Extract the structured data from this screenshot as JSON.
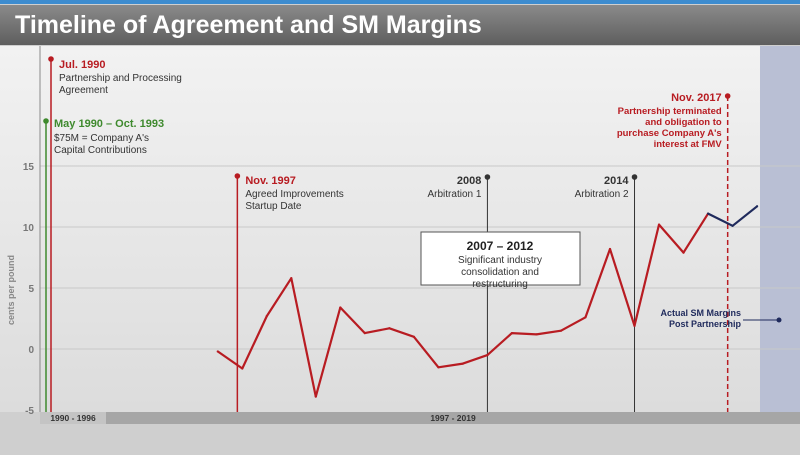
{
  "title": "Timeline of Agreement and SM Margins",
  "chart_data": {
    "type": "line",
    "ylabel": "cents per pound",
    "ylim": [
      -5,
      17
    ],
    "yticks": [
      15,
      10,
      5,
      0,
      -5
    ],
    "x_range": [
      1989.75,
      2020.75
    ],
    "series": [
      {
        "color": "#b81c22",
        "x": [
          1997.0,
          1998.0,
          1999.0,
          2000.0,
          2001.0,
          2002.0,
          2003.0,
          2004.0,
          2005.0,
          2006.0,
          2007.0,
          2008.0,
          2009.0,
          2010.0,
          2011.0,
          2012.0,
          2013.0,
          2014.0,
          2015.0,
          2016.0,
          2017.0
        ],
        "y": [
          -0.2,
          -1.6,
          2.7,
          5.8,
          -3.9,
          3.4,
          1.3,
          1.7,
          1.0,
          -1.5,
          -1.2,
          -0.5,
          1.3,
          1.2,
          1.5,
          2.6,
          8.2,
          1.9,
          10.2,
          7.9,
          11.1
        ]
      },
      {
        "name": "Actual SM Margins Post Partnership",
        "color": "#1f2a5c",
        "x": [
          2017.0,
          2018.0,
          2019.0
        ],
        "y": [
          11.1,
          10.1,
          11.7
        ]
      }
    ],
    "milestones": [
      {
        "date": "Jul. 1990",
        "x": 1990.3,
        "label": "Partnership and Processing Agreement",
        "color": "#b81c22"
      },
      {
        "date": "May 1990 – Oct. 1993",
        "x": 1990.0,
        "label": "$75M = Company A's Capital Contributions",
        "color": "#3f8a2e"
      },
      {
        "date": "Nov. 1997",
        "x": 1997.8,
        "label": "Agreed Improvements Startup Date",
        "color": "#b81c22"
      },
      {
        "date": "2008",
        "x": 2008.0,
        "label": "Arbitration 1",
        "color": "#333333"
      },
      {
        "date": "2014",
        "x": 2014.0,
        "label": "Arbitration 2",
        "color": "#333333"
      },
      {
        "date": "Nov. 2017",
        "x": 2017.8,
        "label": "Partnership terminated and obligation to purchase Company A's interest at FMV",
        "color": "#b81c22"
      }
    ],
    "callout": {
      "title": "2007 – 2012",
      "text": "Significant industry consolidation and restructuring"
    },
    "periods": [
      "1990 - 1996",
      "1997 - 2019"
    ]
  },
  "legend": {
    "post_partnership": "Actual SM Margins Post Partnership"
  }
}
